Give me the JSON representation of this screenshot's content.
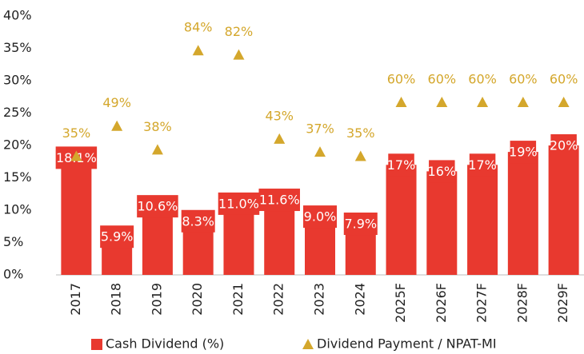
{
  "chart_data": {
    "type": "bar",
    "categories": [
      "2017",
      "2018",
      "2019",
      "2020",
      "2021",
      "2022",
      "2023",
      "2024",
      "2025F",
      "2026F",
      "2027F",
      "2028F",
      "2029F"
    ],
    "series": [
      {
        "name": "Cash Dividend (%)",
        "type": "bar",
        "color": "#e8392f",
        "values": [
          18.1,
          5.9,
          10.6,
          8.3,
          11.0,
          11.6,
          9.0,
          7.9,
          17,
          16,
          17,
          19,
          20
        ],
        "value_labels": [
          "18.1%",
          "5.9%",
          "10.6%",
          "8.3%",
          "11.0%",
          "11.6%",
          "9.0%",
          "7.9%",
          "17%",
          "16%",
          "17%",
          "19%",
          "20%"
        ]
      },
      {
        "name": "Dividend Payment / NPAT-MI",
        "type": "scatter",
        "marker": "triangle",
        "axis": "y2",
        "color": "#d4a72c",
        "values": [
          35,
          49,
          38,
          84,
          82,
          43,
          37,
          35,
          60,
          60,
          60,
          60,
          60
        ],
        "value_labels": [
          "35%",
          "49%",
          "38%",
          "84%",
          "82%",
          "43%",
          "37%",
          "35%",
          "60%",
          "60%",
          "60%",
          "60%",
          "60%"
        ]
      }
    ],
    "ylim": [
      0,
      40
    ],
    "yticks": [
      {
        "value": 0,
        "label": "0%"
      },
      {
        "value": 5,
        "label": "5%"
      },
      {
        "value": 10,
        "label": "10%"
      },
      {
        "value": 15,
        "label": "15%"
      },
      {
        "value": 20,
        "label": "20%"
      },
      {
        "value": 25,
        "label": "25%"
      },
      {
        "value": 30,
        "label": "30%"
      },
      {
        "value": 35,
        "label": "35%"
      },
      {
        "value": 40,
        "label": "40%"
      }
    ],
    "y2lim": [
      -20,
      100
    ],
    "legend": "bottom"
  }
}
